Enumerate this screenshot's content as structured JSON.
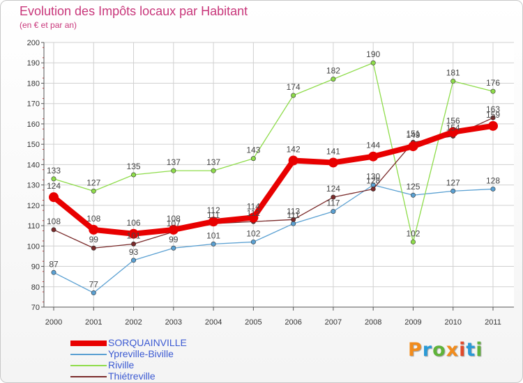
{
  "header": {
    "title": "Evolution des Impôts locaux par Habitant",
    "subtitle": "(en € et par an)"
  },
  "logo": {
    "letters": [
      "P",
      "r",
      "o",
      "x",
      "i",
      "t",
      "i"
    ],
    "colors": [
      "#f28c1c",
      "#2a9ad6",
      "#5fb33a",
      "#f28c1c",
      "#e04a2a",
      "#2a9ad6",
      "#5fb33a"
    ]
  },
  "chart_data": {
    "type": "line",
    "title": "Evolution des Impôts locaux par Habitant",
    "subtitle": "(en € et par an)",
    "xlabel": "",
    "ylabel": "",
    "categories": [
      "2000",
      "2001",
      "2002",
      "2003",
      "2004",
      "2005",
      "2006",
      "2007",
      "2008",
      "2009",
      "2010",
      "2011"
    ],
    "ylim": [
      70,
      200
    ],
    "yticks": [
      "70",
      "80",
      "90",
      "100",
      "110",
      "120",
      "130",
      "140",
      "150",
      "160",
      "170",
      "180",
      "190",
      "200"
    ],
    "grid": true,
    "legend_position": "bottom-left",
    "series": [
      {
        "name": "SORQUAINVILLE",
        "color": "#e80000",
        "values": [
          124,
          108,
          106,
          108,
          112,
          114,
          142,
          141,
          144,
          149,
          156,
          159
        ],
        "labels": [
          "124",
          "108",
          "106",
          "108",
          "112",
          "114",
          "142",
          "141",
          "144",
          "149",
          "156",
          "159"
        ]
      },
      {
        "name": "Ypreville-Biville",
        "color": "#5aa0d2",
        "values": [
          87,
          77,
          93,
          99,
          101,
          102,
          111,
          117,
          130,
          125,
          127,
          128
        ],
        "labels": [
          "87",
          "77",
          "93",
          "99",
          "101",
          "102",
          "111",
          "117",
          "130",
          "125",
          "127",
          "128"
        ]
      },
      {
        "name": "Riville",
        "color": "#8edc4a",
        "values": [
          133,
          127,
          135,
          137,
          137,
          143,
          174,
          182,
          190,
          102,
          181,
          176
        ],
        "labels": [
          "133",
          "127",
          "135",
          "137",
          "137",
          "143",
          "174",
          "182",
          "190",
          "102",
          "181",
          "176"
        ]
      },
      {
        "name": "Thiétreville",
        "color": "#7a2a2a",
        "values": [
          108,
          99,
          101,
          107,
          111,
          112,
          113,
          124,
          128,
          151,
          154,
          163
        ],
        "labels": [
          "108",
          "99",
          "101",
          "107",
          "111",
          "112",
          "113",
          "124",
          "128",
          "151",
          "154",
          "163"
        ]
      }
    ]
  }
}
